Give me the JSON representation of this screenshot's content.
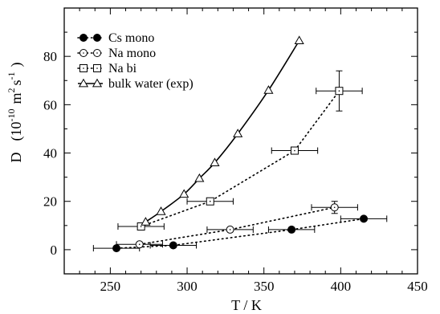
{
  "chart_data": {
    "type": "scatter",
    "xlabel": "T / K",
    "ylabel": "D",
    "ylabel_units": "(10",
    "ylabel_exp": "-10",
    "ylabel_unit_m": "m",
    "ylabel_exp_2": "2",
    "ylabel_unit_s": "s",
    "ylabel_exp_m1": "-1",
    "ylabel_close": ")",
    "xlim": [
      220,
      450
    ],
    "ylim": [
      -10,
      100
    ],
    "xticks": [
      250,
      300,
      350,
      400,
      450
    ],
    "yticks": [
      0,
      20,
      40,
      60,
      80
    ],
    "grid": false,
    "legend_position": "top-left",
    "series": [
      {
        "name": "Cs mono",
        "marker": "filled-circle",
        "line": "dotted",
        "points": [
          {
            "x": 254,
            "y": 0.6,
            "xerr": 15,
            "yerr": 0
          },
          {
            "x": 291,
            "y": 1.8,
            "xerr": 15,
            "yerr": 0
          },
          {
            "x": 368,
            "y": 8.3,
            "xerr": 15,
            "yerr": 0
          },
          {
            "x": 415,
            "y": 12.8,
            "xerr": 15,
            "yerr": 0
          }
        ]
      },
      {
        "name": "Na mono",
        "marker": "open-circle",
        "line": "dotted",
        "points": [
          {
            "x": 269,
            "y": 2.2,
            "xerr": 15,
            "yerr": 0
          },
          {
            "x": 328,
            "y": 8.3,
            "xerr": 15,
            "yerr": 0
          },
          {
            "x": 396,
            "y": 17.5,
            "xerr": 15,
            "yerr": 2.5
          }
        ]
      },
      {
        "name": "Na bi",
        "marker": "open-square",
        "line": "dotted",
        "points": [
          {
            "x": 270,
            "y": 9.6,
            "xerr": 15,
            "yerr": 0
          },
          {
            "x": 315,
            "y": 20.0,
            "xerr": 15,
            "yerr": 0
          },
          {
            "x": 370,
            "y": 41.0,
            "xerr": 15,
            "yerr": 0
          },
          {
            "x": 399,
            "y": 65.7,
            "xerr": 15,
            "yerr": 8.3
          }
        ]
      },
      {
        "name": "bulk water (exp)",
        "marker": "open-triangle",
        "line": "solid",
        "points": [
          {
            "x": 273,
            "y": 11.5
          },
          {
            "x": 283,
            "y": 15.8
          },
          {
            "x": 298,
            "y": 23.0
          },
          {
            "x": 308,
            "y": 29.5
          },
          {
            "x": 318,
            "y": 36.0
          },
          {
            "x": 333,
            "y": 48.0
          },
          {
            "x": 353,
            "y": 66.0
          },
          {
            "x": 373,
            "y": 86.5
          }
        ]
      }
    ]
  }
}
